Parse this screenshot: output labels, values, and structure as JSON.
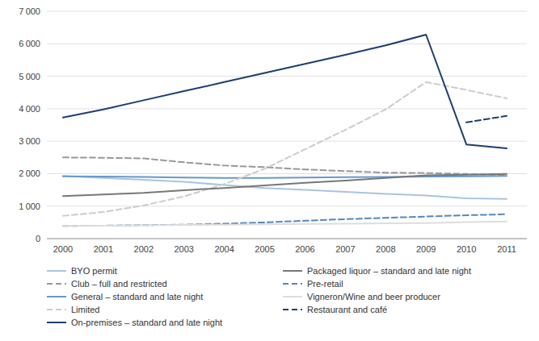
{
  "chart_data": {
    "type": "line",
    "x": [
      2000,
      2001,
      2002,
      2003,
      2004,
      2005,
      2006,
      2007,
      2008,
      2009,
      2010,
      2011
    ],
    "xlim": [
      1999.6,
      2011.5
    ],
    "xticks": [
      2000,
      2001,
      2002,
      2003,
      2004,
      2005,
      2006,
      2007,
      2008,
      2009,
      2010,
      2011
    ],
    "ylim": [
      0,
      7000
    ],
    "yticks": [
      0,
      {
        "value": 1000,
        "label": "1 000"
      },
      {
        "value": 2000,
        "label": "2 000"
      },
      {
        "value": 3000,
        "label": "3 000"
      },
      {
        "value": 4000,
        "label": "4 000"
      },
      {
        "value": 5000,
        "label": "5 000"
      },
      {
        "value": 6000,
        "label": "6 000"
      },
      {
        "value": 7000,
        "label": "7 000"
      }
    ],
    "grid": true,
    "legend": "bottom",
    "series": [
      {
        "name": "BYO permit",
        "color": "#a8c4e0",
        "line_style": "solid",
        "values": [
          1930,
          1870,
          1810,
          1750,
          1650,
          1560,
          1500,
          1440,
          1380,
          1330,
          1240,
          1220
        ]
      },
      {
        "name": "Club – full and restricted",
        "color": "#999999",
        "line_style": "dashed",
        "values": [
          2500,
          2490,
          2470,
          2350,
          2250,
          2200,
          2130,
          2080,
          2030,
          2020,
          1990,
          1960
        ]
      },
      {
        "name": "General – standard and late night",
        "color": "#6699cc",
        "line_style": "solid",
        "values": [
          1920,
          1910,
          1900,
          1880,
          1870,
          1870,
          1880,
          1890,
          1900,
          1910,
          1920,
          1930
        ]
      },
      {
        "name": "Limited",
        "color": "#cccccc",
        "line_style": "dashed",
        "values": [
          700,
          820,
          1020,
          1300,
          1680,
          2150,
          2750,
          3350,
          3980,
          4820,
          4580,
          4320
        ]
      },
      {
        "name": "On-premises – standard and late night",
        "color": "#1c3f6e",
        "line_style": "solid",
        "values": [
          3730,
          3980,
          4260,
          4540,
          4820,
          5100,
          5380,
          5660,
          5950,
          6280,
          2900,
          2780
        ]
      },
      {
        "name": "Packaged liquor – standard and late night",
        "color": "#777777",
        "line_style": "solid",
        "values": [
          1310,
          1360,
          1410,
          1490,
          1560,
          1640,
          1720,
          1790,
          1870,
          1950,
          1970,
          1990
        ]
      },
      {
        "name": "Pre-retail",
        "color": "#5588bb",
        "line_style": "dashed",
        "values": [
          390,
          400,
          415,
          430,
          460,
          500,
          550,
          600,
          640,
          680,
          720,
          750
        ]
      },
      {
        "name": "Vigneron/Wine and beer producer",
        "color": "#dddddd",
        "line_style": "solid",
        "values": [
          390,
          400,
          410,
          420,
          430,
          440,
          450,
          460,
          470,
          480,
          510,
          530
        ]
      },
      {
        "name": "Restaurant and café",
        "color": "#1c3f6e",
        "line_style": "dashed",
        "values": [
          null,
          null,
          null,
          null,
          null,
          null,
          null,
          null,
          null,
          null,
          3580,
          3780
        ]
      }
    ]
  }
}
